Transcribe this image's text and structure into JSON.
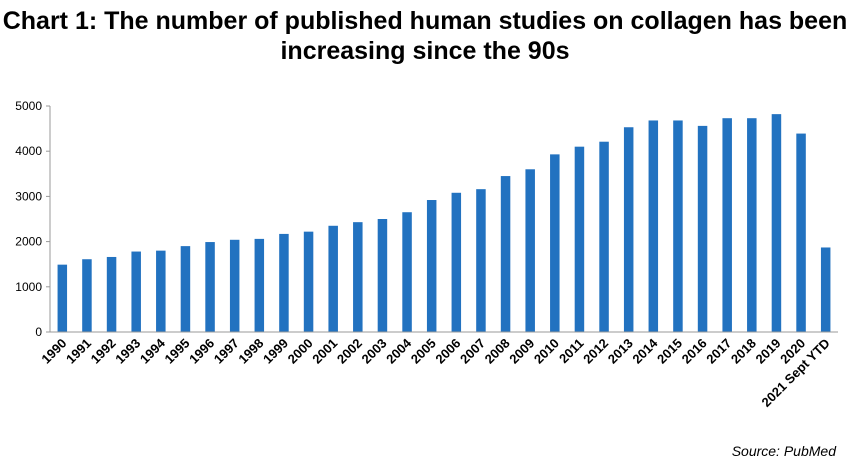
{
  "chart_data": {
    "type": "bar",
    "title_lines": [
      "Chart 1: The number of published human studies on collagen has been",
      "increasing since the 90s"
    ],
    "categories": [
      "1990",
      "1991",
      "1992",
      "1993",
      "1994",
      "1995",
      "1996",
      "1997",
      "1998",
      "1999",
      "2000",
      "2001",
      "2002",
      "2003",
      "2004",
      "2005",
      "2006",
      "2007",
      "2008",
      "2009",
      "2010",
      "2011",
      "2012",
      "2013",
      "2014",
      "2015",
      "2016",
      "2017",
      "2018",
      "2019",
      "2020",
      "2021 Sept YTD"
    ],
    "values": [
      1490,
      1610,
      1660,
      1780,
      1800,
      1900,
      1990,
      2040,
      2060,
      2170,
      2220,
      2350,
      2430,
      2500,
      2650,
      2920,
      3080,
      3160,
      3450,
      3600,
      3930,
      4100,
      4210,
      4530,
      4680,
      4680,
      4560,
      4730,
      4730,
      4820,
      4390,
      1870
    ],
    "ylim": [
      0,
      5000
    ],
    "yticks": [
      0,
      1000,
      2000,
      3000,
      4000,
      5000
    ],
    "bar_color": "#2272c0",
    "grid": false,
    "legend": false,
    "xlabel": "",
    "ylabel": ""
  },
  "source": "Source: PubMed"
}
